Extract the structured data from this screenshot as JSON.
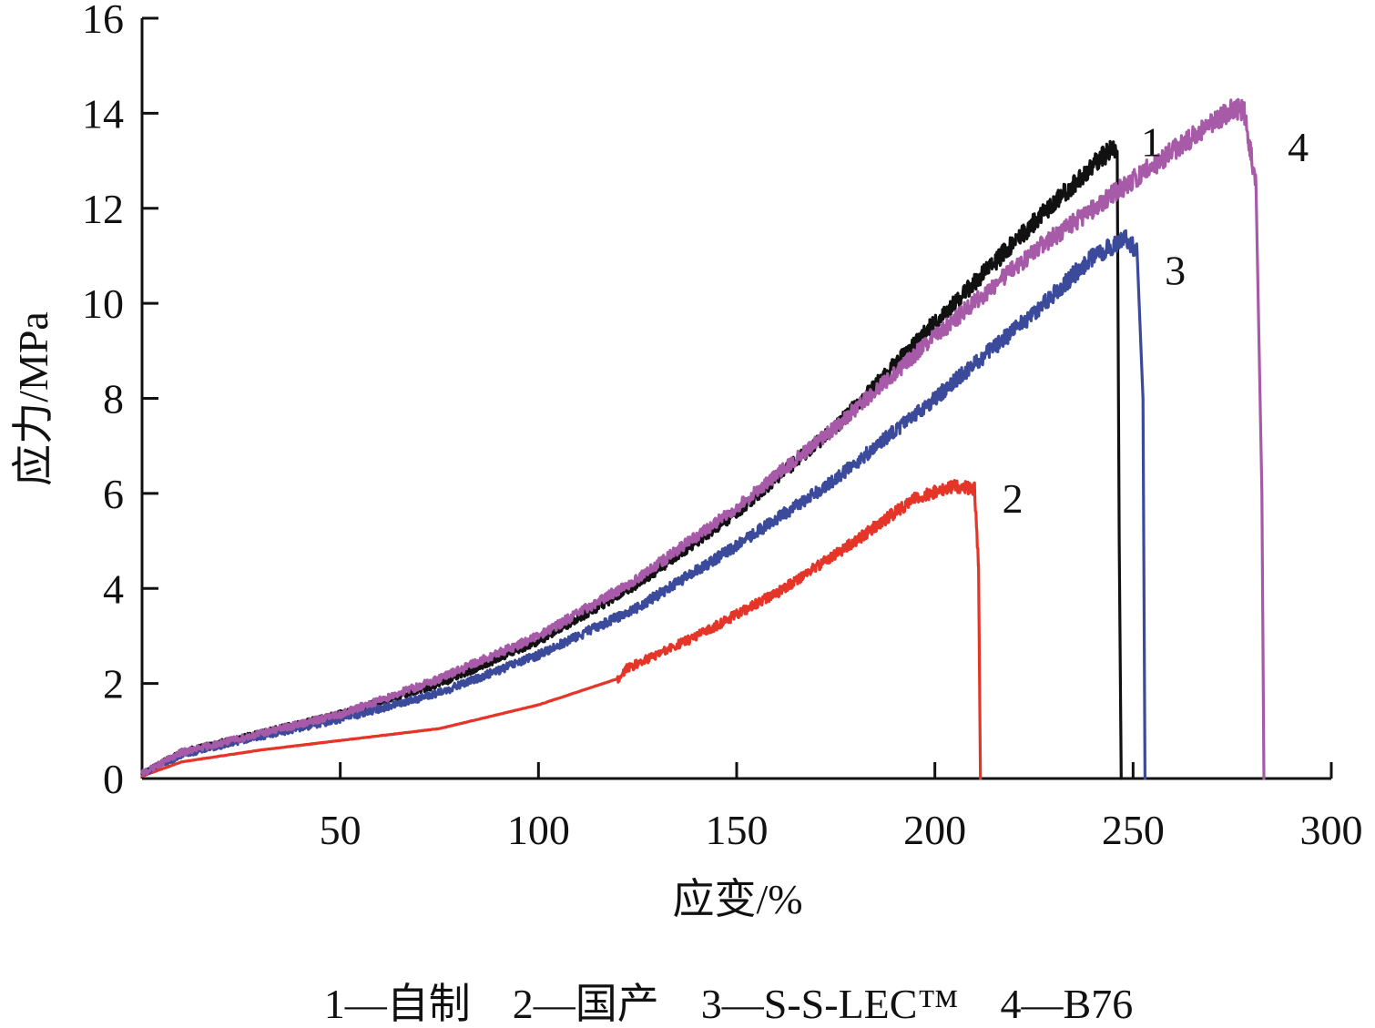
{
  "chart_data": {
    "type": "line",
    "title": "",
    "xlabel": "应变/%",
    "ylabel": "应力/MPa",
    "xlim": [
      0,
      300
    ],
    "ylim": [
      0,
      16
    ],
    "xticks": [
      50,
      100,
      150,
      200,
      250,
      300
    ],
    "yticks": [
      0,
      2,
      4,
      6,
      8,
      10,
      12,
      14,
      16
    ],
    "grid": false,
    "legend_position": "bottom",
    "legend_text": "1—自制    2—国产    3—S-S-LEC™    4—B76",
    "series": [
      {
        "name": "1",
        "color": "#111111",
        "x": [
          0,
          10,
          25,
          50,
          75,
          100,
          125,
          150,
          175,
          200,
          225,
          245,
          246,
          246.5,
          247
        ],
        "y": [
          0.1,
          0.55,
          0.85,
          1.35,
          2.0,
          2.9,
          4.1,
          5.6,
          7.4,
          9.6,
          11.7,
          13.3,
          13.2,
          5.0,
          0.0
        ],
        "label_position": {
          "x": 252,
          "y": 13.4
        }
      },
      {
        "name": "2",
        "color": "#e53529",
        "x": [
          0,
          10,
          30,
          50,
          75,
          100,
          120,
          122,
          140,
          160,
          180,
          195,
          205,
          210,
          211,
          211.5
        ],
        "y": [
          0.05,
          0.35,
          0.6,
          0.8,
          1.05,
          1.55,
          2.1,
          2.3,
          3.0,
          3.9,
          5.0,
          5.9,
          6.15,
          6.1,
          4.5,
          0.0
        ],
        "label_position": {
          "x": 217,
          "y": 5.9
        }
      },
      {
        "name": "3",
        "color": "#3b4a9a",
        "x": [
          0,
          10,
          25,
          50,
          75,
          100,
          125,
          150,
          175,
          200,
          225,
          240,
          248,
          251,
          252.5,
          253
        ],
        "y": [
          0.1,
          0.5,
          0.8,
          1.25,
          1.8,
          2.6,
          3.6,
          4.9,
          6.3,
          8.0,
          9.8,
          11.0,
          11.35,
          11.1,
          8.0,
          0.0
        ],
        "label_position": {
          "x": 258,
          "y": 10.7
        }
      },
      {
        "name": "4",
        "color": "#a65aa8",
        "x": [
          0,
          10,
          25,
          50,
          75,
          100,
          125,
          150,
          175,
          200,
          225,
          250,
          265,
          275,
          278,
          281,
          282.5,
          283
        ],
        "y": [
          0.1,
          0.55,
          0.85,
          1.35,
          2.1,
          3.0,
          4.2,
          5.7,
          7.4,
          9.3,
          11.1,
          12.6,
          13.5,
          14.1,
          14.05,
          12.5,
          6.0,
          0.0
        ],
        "label_position": {
          "x": 289,
          "y": 13.3
        }
      }
    ]
  }
}
